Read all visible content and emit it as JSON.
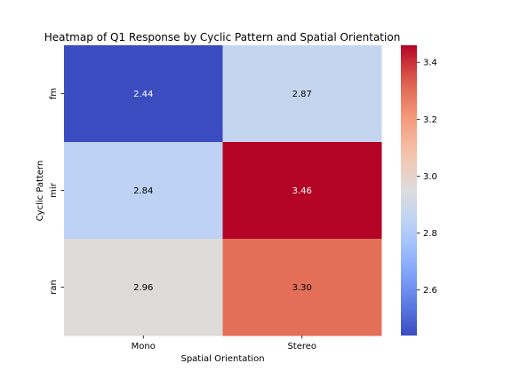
{
  "chart_data": {
    "type": "heatmap",
    "title": "Heatmap of Q1 Response by Cyclic Pattern and Spatial Orientation",
    "xlabel": "Spatial Orientation",
    "ylabel": "Cyclic Pattern",
    "x_categories": [
      "Mono",
      "Stereo"
    ],
    "y_categories": [
      "fm",
      "mir",
      "ran"
    ],
    "values": [
      [
        2.44,
        2.87
      ],
      [
        2.84,
        3.46
      ],
      [
        2.96,
        3.3
      ]
    ],
    "value_labels": [
      [
        "2.44",
        "2.87"
      ],
      [
        "2.84",
        "3.46"
      ],
      [
        "2.96",
        "3.30"
      ]
    ],
    "colormap": "coolwarm",
    "vmin": 2.44,
    "vmax": 3.46,
    "colorbar_ticks": [
      2.6,
      2.8,
      3.0,
      3.2,
      3.4
    ],
    "colorbar_tick_labels": [
      "2.6",
      "2.8",
      "3.0",
      "3.2",
      "3.4"
    ],
    "grid": false
  }
}
